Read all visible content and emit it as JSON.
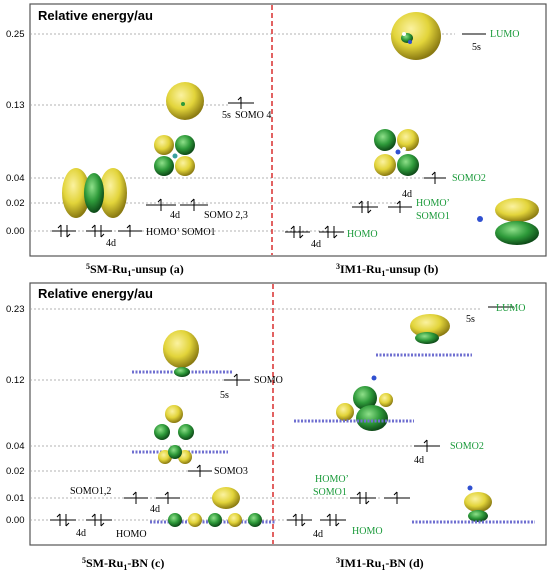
{
  "colors": {
    "frame": "#555555",
    "grid": "#9a9a9a",
    "divider": "#d62020",
    "green_label": "#1a9a3a",
    "lobe_yellow": "#e2d43a",
    "lobe_green": "#2e9a3a"
  },
  "top": {
    "ylabel": "Relative energy/au",
    "ticks": [
      "0.25",
      "0.13",
      "0.04",
      "0.02",
      "0.00"
    ],
    "left": {
      "labels": {
        "somo4": "SOMO 4",
        "s5": "5s",
        "d4": "4d",
        "d4b": "4d",
        "somo23": "SOMO 2,3",
        "homo_somo1": "HOMO’ SOMO1"
      },
      "caption": {
        "pre": "5",
        "mid": "SM-Ru",
        "sub": "1",
        "post": "-unsup (a)"
      }
    },
    "right": {
      "labels": {
        "lumo": "LUMO",
        "s5": "5s",
        "somo2": "SOMO2",
        "d4": "4d",
        "homo_p": "HOMO’",
        "somo1": "SOMO1",
        "d4b": "4d",
        "homo": "HOMO"
      },
      "caption": {
        "pre": "3",
        "mid": "IM1-Ru",
        "sub": "1",
        "post": "-unsup (b)"
      }
    }
  },
  "bottom": {
    "ylabel": "Relative energy/au",
    "ticks": [
      "0.23",
      "0.12",
      "0.04",
      "0.02",
      "0.01",
      "0.00"
    ],
    "left": {
      "labels": {
        "somo": "SOMO",
        "s5": "5s",
        "somo3": "SOMO3",
        "somo12": "SOMO1,2",
        "d4": "4d",
        "d4b": "4d",
        "homo": "HOMO"
      },
      "caption": {
        "pre": "5",
        "mid": "SM-Ru",
        "sub": "1",
        "post": "-BN (c)"
      }
    },
    "right": {
      "labels": {
        "lumo": "LUMO",
        "s5": "5s",
        "somo2": "SOMO2",
        "d4": "4d",
        "homo_p": "HOMO’",
        "somo1": "SOMO1",
        "d4b": "4d",
        "homo": "HOMO"
      },
      "caption": {
        "pre": "3",
        "mid": "IM1-Ru",
        "sub": "1",
        "post": "-BN (d)"
      }
    }
  }
}
